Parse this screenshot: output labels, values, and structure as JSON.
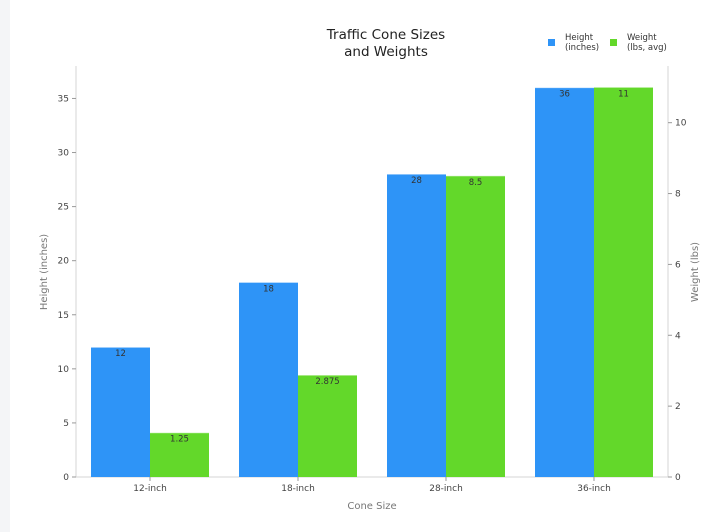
{
  "chart_data": {
    "type": "bar",
    "title_lines": [
      "Traffic Cone Sizes",
      "and Weights"
    ],
    "xlabel": "Cone Size",
    "ylabel_left": "Height (inches)",
    "ylabel_right": "Weight (lbs)",
    "categories": [
      "12-inch",
      "18-inch",
      "28-inch",
      "36-inch"
    ],
    "ylim_left": [
      0,
      38
    ],
    "ylim_right": [
      0,
      11.6
    ],
    "yticks_left": [
      0,
      5,
      10,
      15,
      20,
      25,
      30,
      35
    ],
    "yticks_right": [
      0,
      2,
      4,
      6,
      8,
      10
    ],
    "grid": false,
    "legend_position": "top-right",
    "series": [
      {
        "name_lines": [
          "Height",
          "(inches)"
        ],
        "axis": "left",
        "color": "#2e94f7",
        "values": [
          12,
          18,
          28,
          36
        ],
        "value_labels": [
          "12",
          "18",
          "28",
          "36"
        ]
      },
      {
        "name_lines": [
          "Weight",
          "(lbs, avg)"
        ],
        "axis": "right",
        "color": "#63d82a",
        "values": [
          1.25,
          2.875,
          8.5,
          11
        ],
        "value_labels": [
          "1.25",
          "2.875",
          "8.5",
          "11"
        ]
      }
    ]
  }
}
